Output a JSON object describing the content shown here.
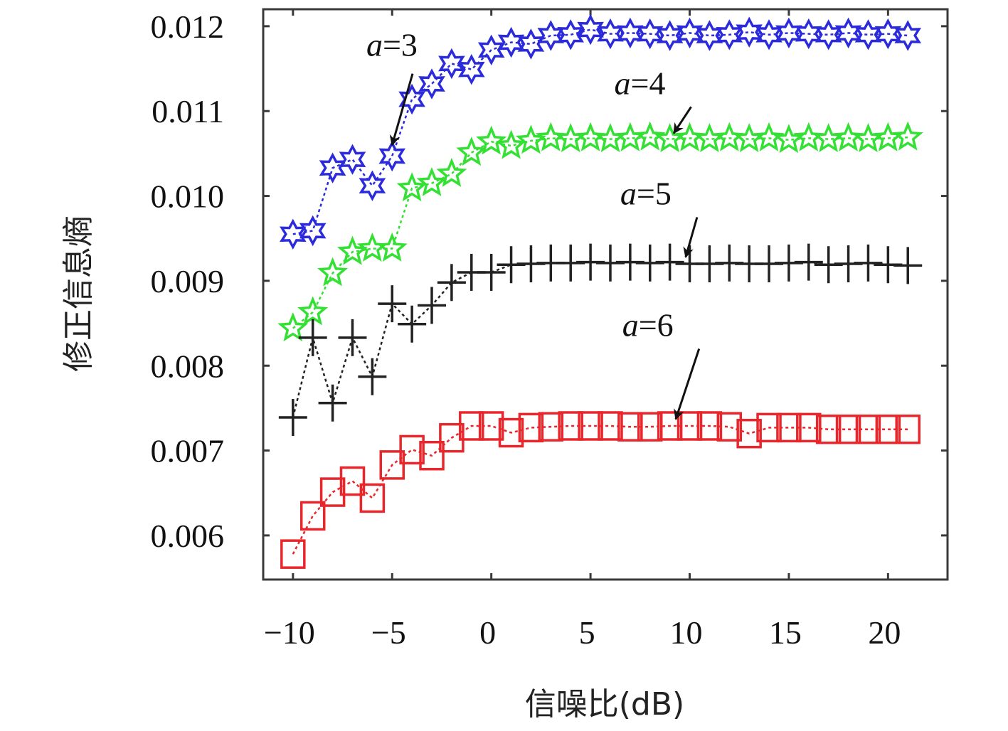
{
  "chart_data": {
    "type": "line",
    "title": "",
    "xlabel": "信噪比(dB)",
    "ylabel": "修正信息熵",
    "xlim": [
      -11.5,
      23
    ],
    "ylim": [
      0.00548,
      0.0122
    ],
    "grid": false,
    "xticks": [
      -10,
      -5,
      0,
      5,
      10,
      15,
      20
    ],
    "xtick_labels": [
      "−10",
      "−5",
      "0",
      "5",
      "10",
      "15",
      "20"
    ],
    "yticks": [
      0.006,
      0.007,
      0.008,
      0.009,
      0.01,
      0.011,
      0.012
    ],
    "ytick_labels": [
      "0.006",
      "0.007",
      "0.008",
      "0.009",
      "0.010",
      "0.011",
      "0.012"
    ],
    "x": [
      -10,
      -9,
      -8,
      -7,
      -6,
      -5,
      -4,
      -3,
      -2,
      -1,
      0,
      1,
      2,
      3,
      4,
      5,
      6,
      7,
      8,
      9,
      10,
      11,
      12,
      13,
      14,
      15,
      16,
      17,
      18,
      19,
      20,
      21
    ],
    "series": [
      {
        "name": "a=3",
        "color": "#2b2bdc",
        "marker": "hexagram",
        "values": [
          0.00955,
          0.00959,
          0.01033,
          0.01043,
          0.01012,
          0.01047,
          0.01114,
          0.01132,
          0.01156,
          0.01149,
          0.01172,
          0.01181,
          0.01179,
          0.01189,
          0.0119,
          0.01196,
          0.01191,
          0.01192,
          0.01191,
          0.01189,
          0.01192,
          0.01189,
          0.0119,
          0.01193,
          0.0119,
          0.01192,
          0.01191,
          0.0119,
          0.01192,
          0.0119,
          0.01191,
          0.01189
        ]
      },
      {
        "name": "a=4",
        "color": "#33e033",
        "marker": "pentagram",
        "values": [
          0.00844,
          0.00863,
          0.00909,
          0.00934,
          0.00938,
          0.00938,
          0.01009,
          0.01015,
          0.01026,
          0.01051,
          0.01064,
          0.01059,
          0.01065,
          0.01068,
          0.01067,
          0.01068,
          0.01067,
          0.01068,
          0.01069,
          0.01067,
          0.01068,
          0.01067,
          0.01068,
          0.01067,
          0.01068,
          0.01066,
          0.01068,
          0.01067,
          0.01068,
          0.01067,
          0.01068,
          0.01069
        ]
      },
      {
        "name": "a=5",
        "color": "#222222",
        "marker": "plus",
        "values": [
          0.00739,
          0.00833,
          0.00756,
          0.00833,
          0.00787,
          0.00873,
          0.00849,
          0.00871,
          0.00898,
          0.0091,
          0.0091,
          0.00919,
          0.0092,
          0.00921,
          0.00921,
          0.00922,
          0.00921,
          0.00922,
          0.00921,
          0.00922,
          0.0092,
          0.0092,
          0.00921,
          0.0092,
          0.0092,
          0.00921,
          0.00922,
          0.00919,
          0.0092,
          0.00921,
          0.00919,
          0.00918
        ]
      },
      {
        "name": "a=6",
        "color": "#e8262b",
        "marker": "square",
        "values": [
          0.00578,
          0.00623,
          0.00651,
          0.00664,
          0.00644,
          0.00683,
          0.00701,
          0.00694,
          0.00715,
          0.00729,
          0.00729,
          0.00721,
          0.00727,
          0.00728,
          0.00729,
          0.00729,
          0.00729,
          0.00728,
          0.00728,
          0.00729,
          0.00729,
          0.00729,
          0.00728,
          0.0072,
          0.00727,
          0.00727,
          0.00727,
          0.00725,
          0.00725,
          0.00725,
          0.00725,
          0.00725
        ]
      }
    ],
    "annotations": [
      {
        "text_var": "a",
        "text_eq": "=3",
        "series": "a=3",
        "label_x": -6.3,
        "label_y": 0.01165,
        "arrow_to_x": -5.0,
        "arrow_to_y": 0.0106
      },
      {
        "text_var": "a",
        "text_eq": "=4",
        "series": "a=4",
        "label_x": 6.2,
        "label_y": 0.0112,
        "arrow_to_x": 9.2,
        "arrow_to_y": 0.01074
      },
      {
        "text_var": "a",
        "text_eq": "=5",
        "series": "a=5",
        "label_x": 6.5,
        "label_y": 0.0099,
        "arrow_to_x": 9.8,
        "arrow_to_y": 0.00928
      },
      {
        "text_var": "a",
        "text_eq": "=6",
        "series": "a=6",
        "label_x": 6.6,
        "label_y": 0.00835,
        "arrow_to_x": 9.3,
        "arrow_to_y": 0.00737
      }
    ]
  }
}
